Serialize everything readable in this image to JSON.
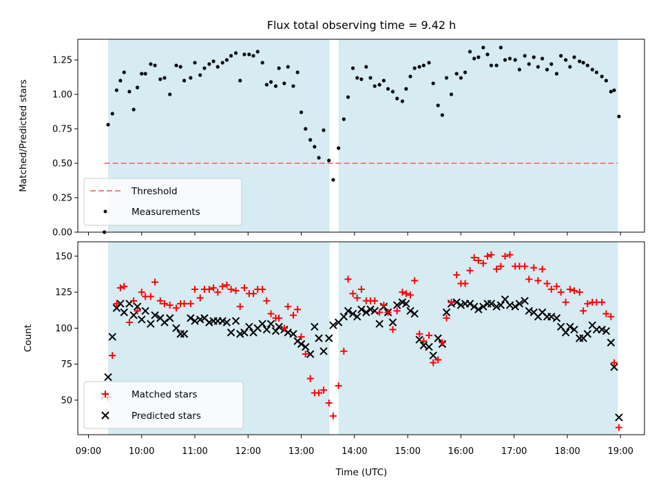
{
  "figure": {
    "title": "Flux total observing time = 9.42 h",
    "background": "#ffffff"
  },
  "colors": {
    "observing_span": "#add8e6",
    "threshold_line": "#f08080",
    "measurements": "#000000",
    "matched": "#ff0000",
    "predicted": "#000000"
  },
  "chart_data": [
    {
      "type": "scatter",
      "ylabel": "Matched/Predicted stars",
      "ylim": [
        0,
        1.4
      ],
      "yticks": [
        "0.00",
        "0.25",
        "0.50",
        "0.75",
        "1.00",
        "1.25"
      ],
      "ytick_values": [
        0,
        0.25,
        0.5,
        0.75,
        1.0,
        1.25
      ],
      "legend_position": "lower-left",
      "threshold": {
        "name": "Threshold",
        "value": 0.5,
        "x_start": 9.3,
        "x_end": 18.95,
        "style": "dashed"
      },
      "observing_spans": [
        [
          9.37,
          13.53
        ],
        [
          13.7,
          18.95
        ]
      ],
      "series": [
        {
          "name": "Measurements",
          "marker": "dot",
          "x": [
            9.3,
            9.37,
            9.45,
            9.53,
            9.6,
            9.67,
            9.77,
            9.85,
            9.92,
            10.0,
            10.07,
            10.17,
            10.25,
            10.35,
            10.43,
            10.53,
            10.65,
            10.73,
            10.8,
            10.92,
            11.0,
            11.1,
            11.18,
            11.27,
            11.35,
            11.43,
            11.52,
            11.6,
            11.68,
            11.77,
            11.85,
            11.93,
            12.02,
            12.1,
            12.18,
            12.27,
            12.35,
            12.43,
            12.52,
            12.58,
            12.68,
            12.75,
            12.85,
            12.93,
            13.0,
            13.08,
            13.17,
            13.25,
            13.33,
            13.42,
            13.52,
            13.6,
            13.7,
            13.8,
            13.88,
            13.97,
            14.05,
            14.13,
            14.22,
            14.3,
            14.38,
            14.47,
            14.55,
            14.63,
            14.72,
            14.8,
            14.9,
            14.97,
            15.05,
            15.13,
            15.22,
            15.3,
            15.4,
            15.48,
            15.57,
            15.65,
            15.73,
            15.82,
            15.92,
            16.0,
            16.08,
            16.17,
            16.25,
            16.33,
            16.42,
            16.5,
            16.57,
            16.67,
            16.75,
            16.83,
            16.92,
            17.02,
            17.1,
            17.2,
            17.28,
            17.37,
            17.45,
            17.53,
            17.62,
            17.7,
            17.8,
            17.88,
            17.97,
            18.05,
            18.13,
            18.23,
            18.3,
            18.38,
            18.47,
            18.55,
            18.65,
            18.73,
            18.82,
            18.88,
            18.97
          ],
          "y": [
            0.0,
            0.78,
            0.86,
            1.03,
            1.1,
            1.16,
            1.02,
            0.89,
            1.05,
            1.15,
            1.15,
            1.22,
            1.21,
            1.11,
            1.12,
            1.0,
            1.21,
            1.2,
            1.1,
            1.12,
            1.23,
            1.14,
            1.19,
            1.22,
            1.24,
            1.2,
            1.23,
            1.25,
            1.28,
            1.3,
            1.1,
            1.29,
            1.29,
            1.28,
            1.31,
            1.23,
            1.07,
            1.09,
            1.06,
            1.19,
            1.08,
            1.2,
            1.06,
            1.16,
            0.87,
            0.75,
            0.67,
            0.62,
            0.54,
            0.74,
            0.52,
            0.38,
            0.61,
            0.82,
            0.98,
            1.19,
            1.12,
            1.11,
            1.2,
            1.12,
            1.06,
            1.07,
            1.1,
            1.04,
            1.02,
            0.97,
            0.95,
            1.04,
            1.13,
            1.19,
            1.2,
            1.21,
            1.23,
            1.08,
            0.92,
            0.85,
            1.12,
            1.0,
            1.15,
            1.12,
            1.16,
            1.31,
            1.26,
            1.27,
            1.34,
            1.29,
            1.21,
            1.21,
            1.34,
            1.25,
            1.26,
            1.25,
            1.18,
            1.28,
            1.22,
            1.27,
            1.2,
            1.26,
            1.18,
            1.22,
            1.15,
            1.28,
            1.25,
            1.2,
            1.27,
            1.24,
            1.23,
            1.21,
            1.18,
            1.16,
            1.13,
            1.1,
            1.02,
            1.03,
            0.84
          ]
        }
      ]
    },
    {
      "type": "scatter",
      "xlabel": "Time (UTC)",
      "ylabel": "Count",
      "xlim": [
        8.8,
        19.45
      ],
      "xticks": [
        "09:00",
        "10:00",
        "11:00",
        "12:00",
        "13:00",
        "14:00",
        "15:00",
        "16:00",
        "17:00",
        "18:00",
        "19:00"
      ],
      "xtick_values": [
        9,
        10,
        11,
        12,
        13,
        14,
        15,
        16,
        17,
        18,
        19
      ],
      "ylim": [
        26,
        160
      ],
      "yticks": [
        "50",
        "75",
        "100",
        "125",
        "150"
      ],
      "ytick_values": [
        50,
        75,
        100,
        125,
        150
      ],
      "legend_position": "lower-left",
      "observing_spans": [
        [
          9.37,
          13.53
        ],
        [
          13.7,
          18.95
        ]
      ],
      "series": [
        {
          "name": "Matched stars",
          "marker": "plus",
          "x": [
            9.3,
            9.37,
            9.45,
            9.53,
            9.6,
            9.67,
            9.77,
            9.85,
            9.92,
            10.0,
            10.07,
            10.17,
            10.25,
            10.35,
            10.43,
            10.53,
            10.65,
            10.73,
            10.8,
            10.92,
            11.0,
            11.1,
            11.18,
            11.27,
            11.35,
            11.43,
            11.52,
            11.6,
            11.68,
            11.77,
            11.85,
            11.93,
            12.02,
            12.1,
            12.18,
            12.27,
            12.35,
            12.43,
            12.52,
            12.58,
            12.68,
            12.75,
            12.85,
            12.93,
            13.0,
            13.08,
            13.17,
            13.25,
            13.33,
            13.42,
            13.52,
            13.6,
            13.7,
            13.8,
            13.88,
            13.97,
            14.05,
            14.13,
            14.22,
            14.3,
            14.38,
            14.47,
            14.55,
            14.63,
            14.72,
            14.8,
            14.9,
            14.97,
            15.05,
            15.13,
            15.22,
            15.3,
            15.4,
            15.48,
            15.57,
            15.65,
            15.73,
            15.82,
            15.92,
            16.0,
            16.08,
            16.17,
            16.25,
            16.33,
            16.42,
            16.5,
            16.57,
            16.67,
            16.75,
            16.83,
            16.92,
            17.02,
            17.1,
            17.2,
            17.28,
            17.37,
            17.45,
            17.53,
            17.62,
            17.7,
            17.8,
            17.88,
            17.97,
            18.05,
            18.13,
            18.23,
            18.3,
            18.38,
            18.47,
            18.55,
            18.65,
            18.73,
            18.82,
            18.88,
            18.97
          ],
          "y": [
            54,
            52,
            81,
            117,
            128,
            129,
            104,
            119,
            112,
            125,
            122,
            122,
            132,
            119,
            117,
            116,
            114,
            117,
            117,
            117,
            127,
            121,
            127,
            127,
            128,
            125,
            129,
            130,
            127,
            126,
            115,
            128,
            124,
            124,
            127,
            127,
            119,
            110,
            107,
            107,
            100,
            115,
            109,
            113,
            94,
            82,
            65,
            55,
            55,
            57,
            48,
            39,
            60,
            84,
            134,
            124,
            121,
            127,
            119,
            119,
            119,
            111,
            116,
            111,
            99,
            112,
            125,
            124,
            123,
            133,
            96,
            91,
            95,
            76,
            78,
            90,
            107,
            118,
            137,
            131,
            131,
            140,
            149,
            147,
            145,
            150,
            151,
            141,
            143,
            150,
            151,
            143,
            143,
            143,
            134,
            142,
            133,
            141,
            131,
            127,
            129,
            125,
            118,
            127,
            126,
            125,
            112,
            117,
            118,
            118,
            118,
            110,
            108,
            76,
            31
          ]
        },
        {
          "name": "Predicted stars",
          "marker": "x",
          "x": [
            9.3,
            9.37,
            9.45,
            9.53,
            9.6,
            9.67,
            9.77,
            9.85,
            9.92,
            10.0,
            10.07,
            10.17,
            10.25,
            10.35,
            10.43,
            10.53,
            10.65,
            10.73,
            10.8,
            10.92,
            11.0,
            11.1,
            11.18,
            11.27,
            11.35,
            11.43,
            11.52,
            11.6,
            11.68,
            11.77,
            11.85,
            11.93,
            12.02,
            12.1,
            12.18,
            12.27,
            12.35,
            12.43,
            12.52,
            12.58,
            12.68,
            12.75,
            12.85,
            12.93,
            13.0,
            13.08,
            13.17,
            13.25,
            13.33,
            13.42,
            13.52,
            13.6,
            13.7,
            13.8,
            13.88,
            13.97,
            14.05,
            14.13,
            14.22,
            14.3,
            14.38,
            14.47,
            14.55,
            14.63,
            14.72,
            14.8,
            14.9,
            14.97,
            15.05,
            15.13,
            15.22,
            15.3,
            15.4,
            15.48,
            15.57,
            15.65,
            15.73,
            15.82,
            15.92,
            16.0,
            16.08,
            16.17,
            16.25,
            16.33,
            16.42,
            16.5,
            16.57,
            16.67,
            16.75,
            16.83,
            16.92,
            17.02,
            17.1,
            17.2,
            17.28,
            17.37,
            17.45,
            17.53,
            17.62,
            17.7,
            17.8,
            17.88,
            17.97,
            18.05,
            18.13,
            18.23,
            18.3,
            18.38,
            18.47,
            18.55,
            18.65,
            18.73,
            18.82,
            18.88,
            18.97
          ],
          "y": [
            53,
            66,
            94,
            114,
            117,
            111,
            117,
            109,
            115,
            106,
            112,
            103,
            109,
            107,
            104,
            107,
            100,
            96,
            96,
            107,
            105,
            106,
            107,
            104,
            105,
            105,
            105,
            104,
            97,
            105,
            96,
            97,
            101,
            97,
            100,
            103,
            99,
            103,
            98,
            101,
            99,
            97,
            96,
            91,
            89,
            87,
            82,
            101,
            93,
            84,
            93,
            102,
            104,
            108,
            112,
            110,
            108,
            113,
            111,
            113,
            112,
            103,
            115,
            111,
            104,
            116,
            118,
            117,
            112,
            110,
            92,
            88,
            87,
            81,
            93,
            89,
            111,
            117,
            118,
            116,
            117,
            117,
            115,
            113,
            115,
            117,
            117,
            115,
            116,
            120,
            116,
            115,
            117,
            119,
            112,
            111,
            108,
            111,
            108,
            108,
            107,
            101,
            97,
            101,
            99,
            93,
            93,
            96,
            102,
            99,
            99,
            98,
            90,
            73,
            38
          ]
        }
      ]
    }
  ]
}
